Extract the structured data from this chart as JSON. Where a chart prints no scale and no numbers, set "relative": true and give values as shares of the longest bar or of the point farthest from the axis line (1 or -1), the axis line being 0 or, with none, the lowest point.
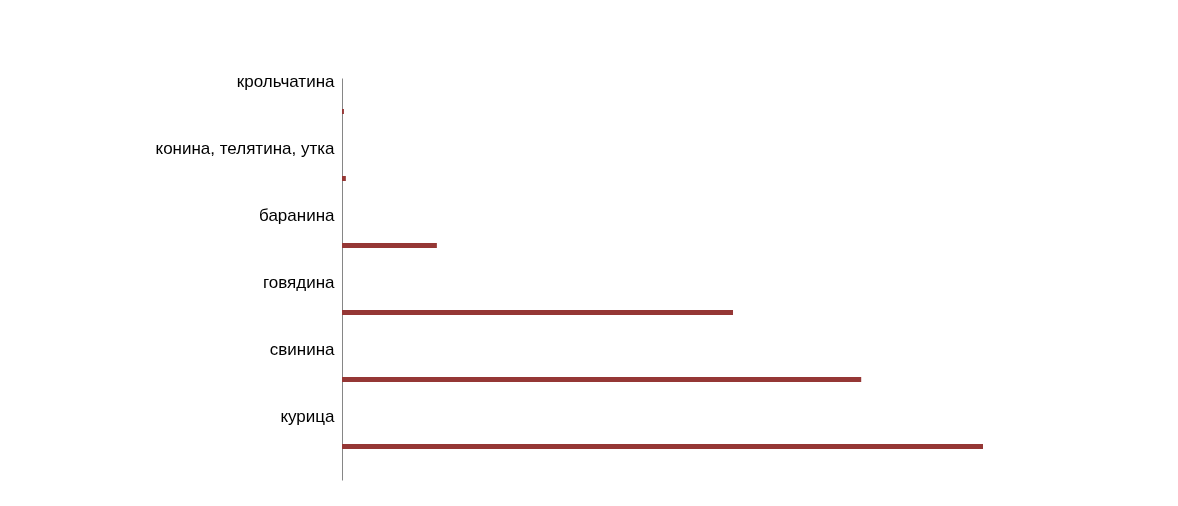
{
  "chart_data": {
    "type": "bar",
    "orientation": "horizontal",
    "relative": true,
    "categories": [
      "крольчатина",
      "конина, телятина, утка",
      "баранина",
      "говядина",
      "свинина",
      "курица"
    ],
    "values": [
      0.003,
      0.006,
      0.148,
      0.61,
      0.81,
      1
    ],
    "color": "#953735"
  }
}
